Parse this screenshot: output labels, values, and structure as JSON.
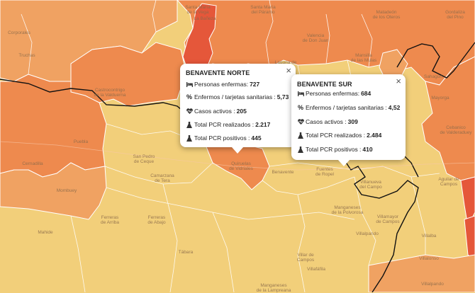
{
  "map_labels": [
    {
      "text": "Santa María de la Vega",
      "lines": [
        "Santa María",
        "de la Vega"
      ]
    },
    {
      "text": "Santa María del Páramo",
      "lines": [
        "Santa María",
        "del Páramo"
      ]
    },
    {
      "text": "Matadeón de los Oteros",
      "lines": [
        "Matadeón",
        "de los Oteros"
      ]
    },
    {
      "text": "Gordaliza del Pino",
      "lines": [
        "Gordaliza",
        "del Pino"
      ]
    },
    {
      "text": "Corporales",
      "lines": [
        "Corporales"
      ]
    },
    {
      "text": "La Bañeza",
      "lines": [
        "La Bañeza"
      ]
    },
    {
      "text": "Valencia de Don Juan",
      "lines": [
        "Valencia",
        "de Don Juan"
      ]
    },
    {
      "text": "Truchas",
      "lines": [
        "Truchas"
      ]
    },
    {
      "text": "Laguna de Negrillos",
      "lines": [
        "Laguna de",
        "Negrillos"
      ]
    },
    {
      "text": "Mansilla de las Mulas",
      "lines": [
        "Mansilla",
        "de las Mulas"
      ]
    },
    {
      "text": "Castrocontrigo de la Valduerna",
      "lines": [
        "Castrocontrigo",
        "de la Valduerna"
      ]
    },
    {
      "text": "Mayorga",
      "lines": [
        "Mayorga"
      ]
    },
    {
      "text": "Sahagún",
      "lines": [
        "Sahagún"
      ]
    },
    {
      "text": "Puebla",
      "lines": [
        "Puebla"
      ]
    },
    {
      "text": "Cebanico de Valderaduey",
      "lines": [
        "Cebanico",
        "de Valderaduey"
      ]
    },
    {
      "text": "Camarzana de Tera",
      "lines": [
        "Camarzana",
        "de Tera"
      ]
    },
    {
      "text": "Quiruelas de Vidriales",
      "lines": [
        "Quiruelas",
        "de Vidriales"
      ]
    },
    {
      "text": "Benavente",
      "lines": [
        "Benavente"
      ]
    },
    {
      "text": "Fuentes de Ropel",
      "lines": [
        "Fuentes",
        "de Ropel"
      ]
    },
    {
      "text": "Manganeses de la Polvorosa",
      "lines": [
        "Manganeses",
        "de la Polvorosa"
      ]
    },
    {
      "text": "Aguilar de Campos",
      "lines": [
        "Aguilar de",
        "Campos"
      ]
    },
    {
      "text": "Cernadilla",
      "lines": [
        "Cernadilla"
      ]
    },
    {
      "text": "San Pedro de Ceque",
      "lines": [
        "San Pedro",
        "de Ceque"
      ]
    },
    {
      "text": "Mombuey",
      "lines": [
        "Mombuey"
      ]
    },
    {
      "text": "Villalpando",
      "lines": [
        "Villalpando"
      ]
    },
    {
      "text": "Mahide",
      "lines": [
        "Mahide"
      ]
    },
    {
      "text": "Ferreras de Arriba",
      "lines": [
        "Ferreras",
        "de Arriba"
      ]
    },
    {
      "text": "Ferreras de Abajo",
      "lines": [
        "Ferreras",
        "de Abajo"
      ]
    },
    {
      "text": "Villanueva del Campo",
      "lines": [
        "Villanueva",
        "del Campo"
      ]
    },
    {
      "text": "Tábara",
      "lines": [
        "Tábara"
      ]
    },
    {
      "text": "Villamayor de Campos",
      "lines": [
        "Villamayor",
        "de Campos"
      ]
    },
    {
      "text": "Villalba",
      "lines": [
        "Villalba"
      ]
    },
    {
      "text": "Villalpando sur",
      "lines": [
        "Villalpando"
      ]
    },
    {
      "text": "Villar de Campos",
      "lines": [
        "Villar de",
        "Campos"
      ]
    },
    {
      "text": "Manganeses de la Lampreana",
      "lines": [
        "Manganeses",
        "de la Lampreana"
      ]
    },
    {
      "text": "Villafáfila",
      "lines": [
        "Villafáfila"
      ]
    },
    {
      "text": "Villalonso",
      "lines": [
        "Villalonso"
      ]
    }
  ],
  "popups": [
    {
      "title": "BENAVENTE NORTE",
      "close": "×",
      "rows": [
        {
          "icon": "bed-icon",
          "label": "Personas enfermas: ",
          "value": "727"
        },
        {
          "icon": "percent-icon",
          "label": "Enfermos / tarjetas sanitarias : ",
          "value": "5,73"
        },
        {
          "icon": "heart-pulse-icon",
          "label": "Casos activos : ",
          "value": "205"
        },
        {
          "icon": "flask-icon",
          "label": "Total PCR realizados : ",
          "value": "2.217"
        },
        {
          "icon": "flask-icon",
          "label": "Total PCR positivos : ",
          "value": "445"
        }
      ]
    },
    {
      "title": "BENAVENTE SUR",
      "close": "×",
      "rows": [
        {
          "icon": "bed-icon",
          "label": "Personas enfermas: ",
          "value": "684"
        },
        {
          "icon": "percent-icon",
          "label": "Enfermos / tarjetas sanitarias : ",
          "value": "4,52"
        },
        {
          "icon": "heart-pulse-icon",
          "label": "Casos activos : ",
          "value": "309"
        },
        {
          "icon": "flask-icon",
          "label": "Total PCR realizados : ",
          "value": "2.484"
        },
        {
          "icon": "flask-icon",
          "label": "Total PCR positivos : ",
          "value": "410"
        }
      ]
    }
  ],
  "colors": {
    "low": "#f2cf7a",
    "medium": "#f0a262",
    "high": "#ee8a4e",
    "very_high": "#e5573a",
    "border_region": "#111111",
    "border_zone": "#ffffff"
  }
}
